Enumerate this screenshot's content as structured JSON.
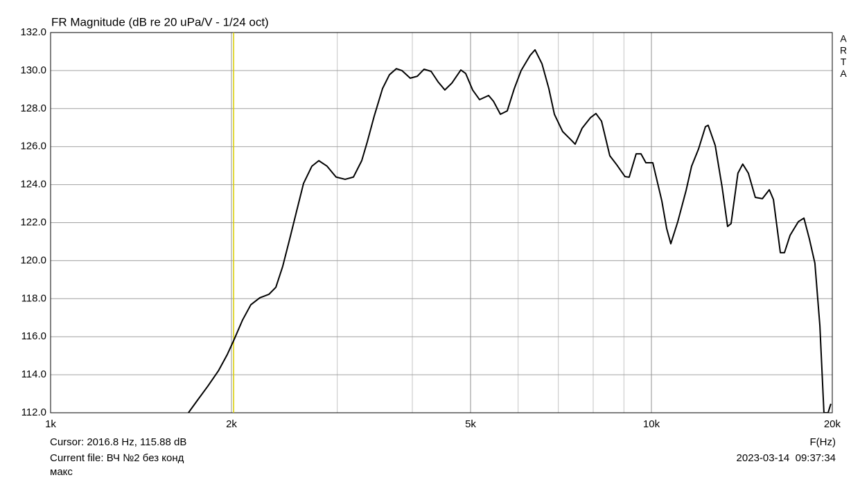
{
  "chart_data": {
    "type": "line",
    "title": "FR Magnitude (dB re 20 uPa/V - 1/24 oct)",
    "x_label": "F(Hz)",
    "xscale": "log",
    "xlim": [
      1000,
      20000
    ],
    "ylim": [
      112,
      132
    ],
    "xticks": [
      {
        "value": 1000,
        "label": "1k"
      },
      {
        "value": 2000,
        "label": "2k"
      },
      {
        "value": 5000,
        "label": "5k"
      },
      {
        "value": 10000,
        "label": "10k"
      },
      {
        "value": 20000,
        "label": "20k"
      }
    ],
    "xgrid_minor": [
      3000,
      4000,
      6000,
      7000,
      8000,
      9000
    ],
    "yticks": [
      {
        "value": 112,
        "label": "112.0"
      },
      {
        "value": 114,
        "label": "114.0"
      },
      {
        "value": 116,
        "label": "116.0"
      },
      {
        "value": 118,
        "label": "118.0"
      },
      {
        "value": 120,
        "label": "120.0"
      },
      {
        "value": 122,
        "label": "122.0"
      },
      {
        "value": 124,
        "label": "124.0"
      },
      {
        "value": 126,
        "label": "126.0"
      },
      {
        "value": 128,
        "label": "128.0"
      },
      {
        "value": 130,
        "label": "130.0"
      },
      {
        "value": 132,
        "label": "132.0"
      }
    ],
    "grid": true,
    "cursor": {
      "x": 2016.8,
      "color": "#d8cc00",
      "label": "Cursor: 2016.8 Hz, 115.88 dB"
    },
    "x": [
      1696,
      1756,
      1827,
      1902,
      1968,
      2021,
      2087,
      2154,
      2230,
      2309,
      2371,
      2434,
      2500,
      2567,
      2636,
      2722,
      2795,
      2885,
      2986,
      3092,
      3192,
      3295,
      3365,
      3456,
      3568,
      3664,
      3763,
      3844,
      3968,
      4076,
      4184,
      4298,
      4414,
      4531,
      4654,
      4817,
      4907,
      5040,
      5176,
      5358,
      5458,
      5606,
      5755,
      5912,
      6069,
      6283,
      6401,
      6574,
      6750,
      6895,
      7117,
      7309,
      7466,
      7668,
      7915,
      8085,
      8259,
      8526,
      8757,
      9038,
      9183,
      9431,
      9608,
      9789,
      10053,
      10406,
      10602,
      10771,
      11063,
      11420,
      11665,
      11980,
      12300,
      12430,
      12770,
      13110,
      13390,
      13570,
      13930,
      14190,
      14500,
      14890,
      15300,
      15710,
      15960,
      16390,
      16650,
      17010,
      17560,
      17940,
      18320,
      18710,
      19070,
      19370,
      19680,
      19890
    ],
    "series": [
      {
        "name": "FR",
        "color": "#000000",
        "values": [
          112.0,
          112.66,
          113.4,
          114.2,
          115.06,
          115.86,
          116.88,
          117.68,
          118.05,
          118.23,
          118.6,
          119.7,
          121.14,
          122.6,
          124.06,
          124.97,
          125.26,
          124.97,
          124.4,
          124.28,
          124.4,
          125.26,
          126.24,
          127.6,
          129.05,
          129.78,
          130.1,
          130.0,
          129.6,
          129.7,
          130.07,
          129.96,
          129.41,
          128.98,
          129.34,
          130.03,
          129.85,
          128.98,
          128.47,
          128.69,
          128.39,
          127.7,
          127.88,
          129.05,
          130.0,
          130.8,
          131.09,
          130.36,
          129.05,
          127.7,
          126.79,
          126.43,
          126.13,
          126.97,
          127.52,
          127.74,
          127.34,
          125.52,
          125.04,
          124.42,
          124.39,
          125.62,
          125.62,
          125.15,
          125.15,
          123.15,
          121.69,
          120.89,
          122.05,
          123.69,
          124.97,
          125.88,
          127.05,
          127.12,
          126.06,
          123.88,
          121.8,
          121.95,
          124.6,
          125.08,
          124.6,
          123.33,
          123.26,
          123.73,
          123.22,
          120.42,
          120.42,
          121.33,
          122.05,
          122.24,
          121.14,
          119.87,
          116.59,
          112.0,
          112.0,
          112.47
        ]
      }
    ],
    "watermark": [
      "A",
      "R",
      "T",
      "A"
    ],
    "file_label": "Current file: ВЧ №2 без конд",
    "file_label_2": "макс",
    "timestamp": "2023-03-14  09:37:34"
  }
}
